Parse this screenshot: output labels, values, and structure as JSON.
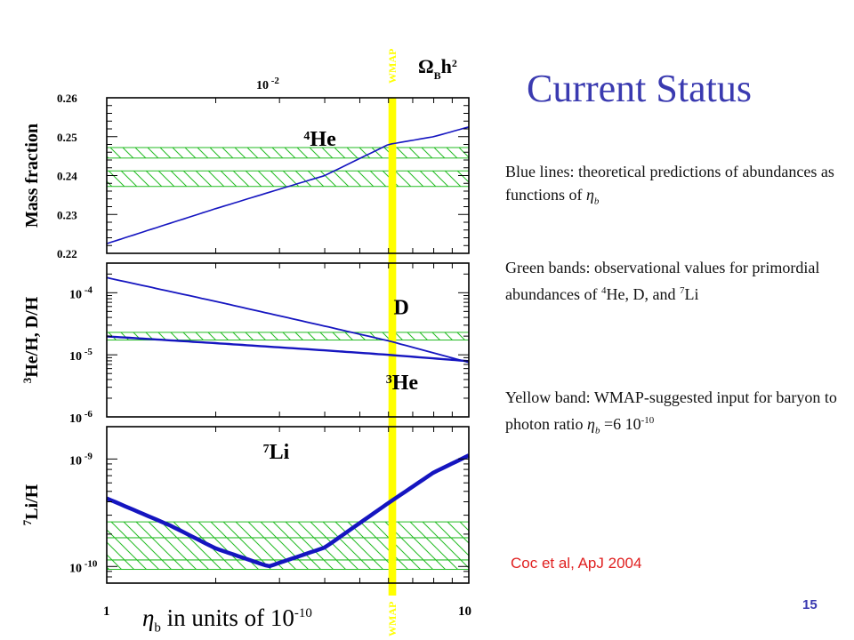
{
  "slide": {
    "title": "Current Status",
    "page_number": "15",
    "citation": "Coc et al, ApJ 2004",
    "x_caption": {
      "symbol": "η",
      "subscript": "b",
      "text": " in units of 10",
      "exponent": "-10"
    },
    "notes": [
      {
        "text": "Blue lines: theoretical predictions of abundances as functions of ",
        "symbol": "η",
        "subscript": "b"
      },
      {
        "text_before": "Green bands: observational values for primordial abundances of ",
        "sup1": "4",
        "mid1": "He, D, and ",
        "sup2": "7",
        "mid2": "Li"
      },
      {
        "text": "Yellow band: WMAP-suggested input for baryon to photon ratio ",
        "symbol": "η",
        "subscript": "b",
        "value": " =6 10",
        "exponent": "-10"
      }
    ]
  },
  "chart_data": {
    "type": "line",
    "xscale": "log",
    "xlim": [
      1,
      10
    ],
    "x_tick_labels": [
      "1",
      "10"
    ],
    "top_axis": {
      "label": "Ω",
      "label_sub": "B",
      "label_rest": "h",
      "label_sup": "2",
      "tick_label": "10",
      "tick_exp": "-2"
    },
    "wmap": {
      "label": "WMAP",
      "eta": 6.14,
      "band": [
        6.0,
        6.3
      ],
      "color": "#ffff00"
    },
    "colors": {
      "theory": "#1515c0",
      "obs": "#22bb22",
      "frame": "#000000"
    },
    "panels": [
      {
        "ylabel": "Mass fraction",
        "yscale": "linear",
        "ylim": [
          0.22,
          0.26
        ],
        "y_tick_labels": [
          "0.26",
          "0.25",
          "0.24",
          "0.23",
          "0.22"
        ],
        "y_tick_values": [
          0.26,
          0.25,
          0.24,
          0.23,
          0.22
        ],
        "series": [
          {
            "name": "4He",
            "label_sup": "4",
            "label_text": "He",
            "label_at": [
              3.5,
              0.2477
            ],
            "x": [
              1,
              2,
              3,
              4,
              6,
              8,
              10
            ],
            "y": [
              0.2225,
              0.2315,
              0.2365,
              0.24,
              0.248,
              0.25,
              0.2525
            ],
            "width": 1.6
          }
        ],
        "bands": [
          {
            "lo": 0.2445,
            "hi": 0.2472
          },
          {
            "lo": 0.2372,
            "hi": 0.2412
          }
        ]
      },
      {
        "ylabel": "He/H, D/H",
        "ylabel_sup": "3",
        "yscale": "log",
        "ylim": [
          1e-06,
          0.0003
        ],
        "y_tick_labels": [
          {
            "base": "10",
            "exp": "-4",
            "v": 0.0001
          },
          {
            "base": "10",
            "exp": "-5",
            "v": 1e-05
          },
          {
            "base": "10",
            "exp": "-6",
            "v": 1e-06
          }
        ],
        "series": [
          {
            "name": "D",
            "label_sup": "",
            "label_text": "D",
            "label_at": [
              6.2,
              4.5e-05
            ],
            "x": [
              1,
              2,
              4,
              6,
              10
            ],
            "y": [
              0.000175,
              7.25e-05,
              2.9e-05,
              1.68e-05,
              7.55e-06
            ],
            "width": 1.8
          },
          {
            "name": "3He",
            "label_sup": "3",
            "label_text": "He",
            "label_at": [
              5.9,
              2.8e-06
            ],
            "x": [
              1,
              2,
              4,
              6,
              10
            ],
            "y": [
              1.98e-05,
              1.54e-05,
              1.18e-05,
              1e-05,
              7.9e-06
            ],
            "width": 2.4
          }
        ],
        "bands": [
          {
            "lo": 1.73e-05,
            "hi": 2.3e-05
          }
        ]
      },
      {
        "ylabel": "Li/H",
        "ylabel_sup": "7",
        "yscale": "log",
        "ylim": [
          7e-11,
          2e-09
        ],
        "y_tick_labels": [
          {
            "base": "10",
            "exp": "-9",
            "v": 1e-09
          },
          {
            "base": "10",
            "exp": "-10",
            "v": 1e-10
          }
        ],
        "series": [
          {
            "name": "7Li",
            "label_sup": "7",
            "label_text": "Li",
            "label_at": [
              2.7,
              1.01e-09
            ],
            "x": [
              1,
              1.5,
              2,
              2.8,
              4,
              6,
              8,
              10
            ],
            "y": [
              4.3e-10,
              2.4e-10,
              1.47e-10,
              1e-10,
              1.5e-10,
              3.9e-10,
              7.5e-10,
              1.08e-09
            ],
            "width": 4.5
          }
        ],
        "bands": [
          {
            "lo": 1.85e-10,
            "hi": 2.6e-10
          },
          {
            "lo": 1.15e-10,
            "hi": 1.85e-10
          },
          {
            "lo": 9.4e-11,
            "hi": 1.15e-10
          }
        ]
      }
    ]
  }
}
